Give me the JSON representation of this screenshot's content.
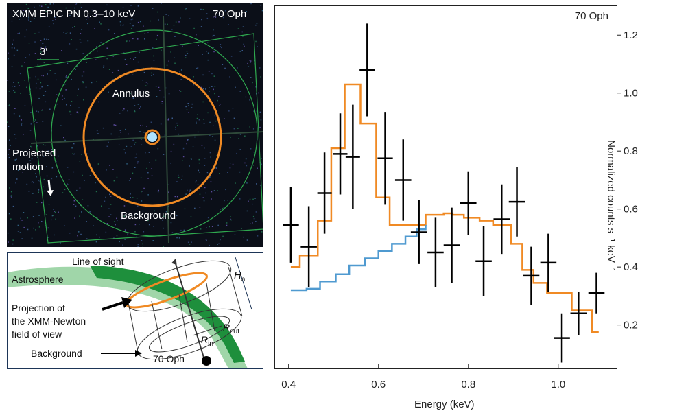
{
  "xray_panel": {
    "title": "XMM EPIC PN 0.3–10 keV",
    "star": "70 Oph",
    "scale": "3′",
    "annulus": "Annulus",
    "projected_motion_1": "Projected",
    "projected_motion_2": "motion",
    "background": "Background",
    "colors": {
      "annulus": "#f08a24",
      "fov": "#2fa84f"
    }
  },
  "schematic": {
    "line_of_sight": "Line of sight",
    "astrosphere": "Astrosphere",
    "projection_1": "Projection of",
    "projection_2": "the XMM-Newton",
    "projection_3": "field of view",
    "background": "Background",
    "star": "70 Oph",
    "h_a_main": "H",
    "h_a_sub": "a",
    "r_in_main": "R",
    "r_in_sub": "in",
    "r_out_main": "R",
    "r_out_sub": "out",
    "colors": {
      "astrosphere": "#1e8f3c",
      "astrosphere_light": "#8fcf9a",
      "cylinder_top": "#f08a24"
    }
  },
  "chart_data": {
    "type": "line",
    "title": "70 Oph",
    "xlabel": "Energy (keV)",
    "ylabel": "Normalized counts s⁻¹ keV⁻¹",
    "xlim": [
      0.37,
      1.13
    ],
    "ylim": [
      0.05,
      1.3
    ],
    "xticks": [
      0.4,
      0.6,
      0.8,
      1.0
    ],
    "yticks": [
      0.2,
      0.4,
      0.6,
      0.8,
      1.0,
      1.2
    ],
    "xtick_labels": [
      "0.4",
      "0.6",
      "0.8",
      "1.0"
    ],
    "ytick_labels": [
      "0.2",
      "0.4",
      "0.6",
      "0.8",
      "1.0",
      "1.2"
    ],
    "data_points": [
      {
        "x": 0.405,
        "y": 0.545,
        "xerr": 0.018,
        "yerr": 0.13
      },
      {
        "x": 0.445,
        "y": 0.47,
        "xerr": 0.018,
        "yerr": 0.14
      },
      {
        "x": 0.48,
        "y": 0.655,
        "xerr": 0.016,
        "yerr": 0.14
      },
      {
        "x": 0.515,
        "y": 0.79,
        "xerr": 0.016,
        "yerr": 0.14
      },
      {
        "x": 0.543,
        "y": 0.78,
        "xerr": 0.016,
        "yerr": 0.18
      },
      {
        "x": 0.575,
        "y": 1.08,
        "xerr": 0.017,
        "yerr": 0.16
      },
      {
        "x": 0.615,
        "y": 0.775,
        "xerr": 0.017,
        "yerr": 0.16
      },
      {
        "x": 0.655,
        "y": 0.7,
        "xerr": 0.018,
        "yerr": 0.14
      },
      {
        "x": 0.69,
        "y": 0.52,
        "xerr": 0.018,
        "yerr": 0.11
      },
      {
        "x": 0.727,
        "y": 0.45,
        "xerr": 0.018,
        "yerr": 0.12
      },
      {
        "x": 0.763,
        "y": 0.475,
        "xerr": 0.018,
        "yerr": 0.13
      },
      {
        "x": 0.8,
        "y": 0.62,
        "xerr": 0.018,
        "yerr": 0.11
      },
      {
        "x": 0.834,
        "y": 0.42,
        "xerr": 0.018,
        "yerr": 0.12
      },
      {
        "x": 0.874,
        "y": 0.565,
        "xerr": 0.018,
        "yerr": 0.12
      },
      {
        "x": 0.908,
        "y": 0.625,
        "xerr": 0.018,
        "yerr": 0.12
      },
      {
        "x": 0.94,
        "y": 0.37,
        "xerr": 0.018,
        "yerr": 0.1
      },
      {
        "x": 0.978,
        "y": 0.415,
        "xerr": 0.018,
        "yerr": 0.1
      },
      {
        "x": 1.008,
        "y": 0.155,
        "xerr": 0.018,
        "yerr": 0.085
      },
      {
        "x": 1.045,
        "y": 0.24,
        "xerr": 0.018,
        "yerr": 0.075
      },
      {
        "x": 1.085,
        "y": 0.31,
        "xerr": 0.018,
        "yerr": 0.07
      }
    ],
    "series": [
      {
        "color": "#f08a24",
        "steps": [
          [
            0.405,
            0.4
          ],
          [
            0.425,
            0.44
          ],
          [
            0.465,
            0.56
          ],
          [
            0.495,
            0.81
          ],
          [
            0.525,
            1.03
          ],
          [
            0.56,
            0.895
          ],
          [
            0.595,
            0.64
          ],
          [
            0.625,
            0.545
          ],
          [
            0.685,
            0.545
          ],
          [
            0.705,
            0.58
          ],
          [
            0.745,
            0.585
          ],
          [
            0.765,
            0.58
          ],
          [
            0.79,
            0.57
          ],
          [
            0.825,
            0.56
          ],
          [
            0.855,
            0.545
          ],
          [
            0.895,
            0.48
          ],
          [
            0.92,
            0.39
          ],
          [
            0.945,
            0.345
          ],
          [
            0.975,
            0.31
          ],
          [
            1.03,
            0.25
          ],
          [
            1.06,
            0.25
          ],
          [
            1.075,
            0.175
          ],
          [
            1.09,
            0.175
          ]
        ]
      },
      {
        "color": "#4f9ad0",
        "steps": [
          [
            0.405,
            0.32
          ],
          [
            0.44,
            0.325
          ],
          [
            0.47,
            0.35
          ],
          [
            0.505,
            0.375
          ],
          [
            0.535,
            0.405
          ],
          [
            0.57,
            0.43
          ],
          [
            0.6,
            0.455
          ],
          [
            0.63,
            0.48
          ],
          [
            0.66,
            0.505
          ],
          [
            0.685,
            0.53
          ],
          [
            0.705,
            0.545
          ]
        ]
      }
    ]
  }
}
